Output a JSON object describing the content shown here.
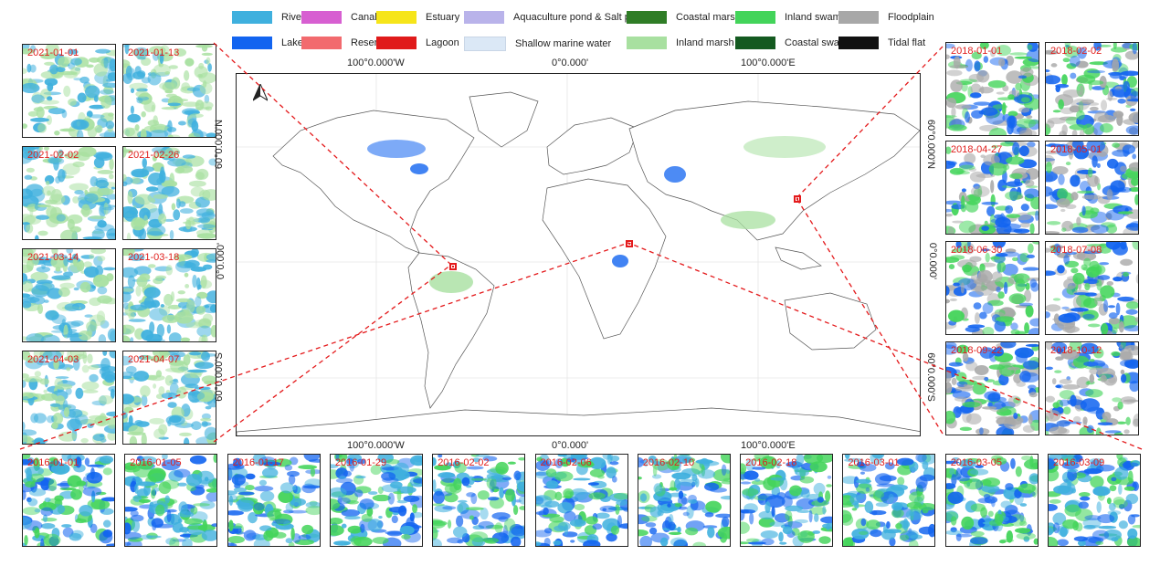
{
  "legend": [
    {
      "label": "River",
      "color": "#3fb0de"
    },
    {
      "label": "Canal",
      "color": "#d75fd1"
    },
    {
      "label": "Estuary",
      "color": "#f6e51a"
    },
    {
      "label": "Aquaculture pond & Salt pan",
      "color": "#b9b3ea"
    },
    {
      "label": "Coastal marsh",
      "color": "#2f7d26"
    },
    {
      "label": "Inland swamp",
      "color": "#43d45a"
    },
    {
      "label": "Floodplain",
      "color": "#a8a8a8"
    },
    {
      "label": "Lake",
      "color": "#1264f0"
    },
    {
      "label": "Reservoir",
      "color": "#f26a6e"
    },
    {
      "label": "Lagoon",
      "color": "#e01a1a"
    },
    {
      "label": "Shallow marine water",
      "color": "#dbe8f6"
    },
    {
      "label": "Inland marsh",
      "color": "#a8e0a0"
    },
    {
      "label": "Coastal swamp",
      "color": "#145a20"
    },
    {
      "label": "Tidal flat",
      "color": "#111111"
    }
  ],
  "map": {
    "top_lon_labels": [
      "100°0.000'W",
      "0°0.000'",
      "100°0.000'E"
    ],
    "bottom_lon_labels": [
      "100°0.000'W",
      "0°0.000'",
      "100°0.000'E"
    ],
    "left_lat_labels": [
      "60°0.000'N",
      "0°0.000'",
      "60°0.000'S"
    ],
    "right_lat_labels": [
      "60°0.000'N",
      "0°0.000'",
      "60°0.000'S"
    ],
    "north_arrow": "north-arrow-icon"
  },
  "left_panel": {
    "dates": [
      "2021-01-01",
      "2021-01-13",
      "2021-02-02",
      "2021-02-26",
      "2021-03-14",
      "2021-03-18",
      "2021-04-03",
      "2021-04-07"
    ],
    "dominant_classes": [
      "River",
      "Inland marsh"
    ]
  },
  "right_panel": {
    "dates": [
      "2018-01-01",
      "2018-02-02",
      "2018-04-27",
      "2018-05-01",
      "2018-06-30",
      "2018-07-08",
      "2018-09-22",
      "2018-10-12"
    ],
    "dominant_classes": [
      "Lake",
      "Inland swamp",
      "Floodplain"
    ]
  },
  "bottom_panel": {
    "dates": [
      "2016-01-01",
      "2016-01-05",
      "2016-01-17",
      "2016-01-29",
      "2016-02-02",
      "2016-02-06",
      "2016-02-10",
      "2016-02-18",
      "2016-03-01",
      "2016-03-05",
      "2016-03-09"
    ],
    "dominant_classes": [
      "Inland swamp",
      "River",
      "Lake"
    ]
  },
  "connector_color": "#e41a1c"
}
